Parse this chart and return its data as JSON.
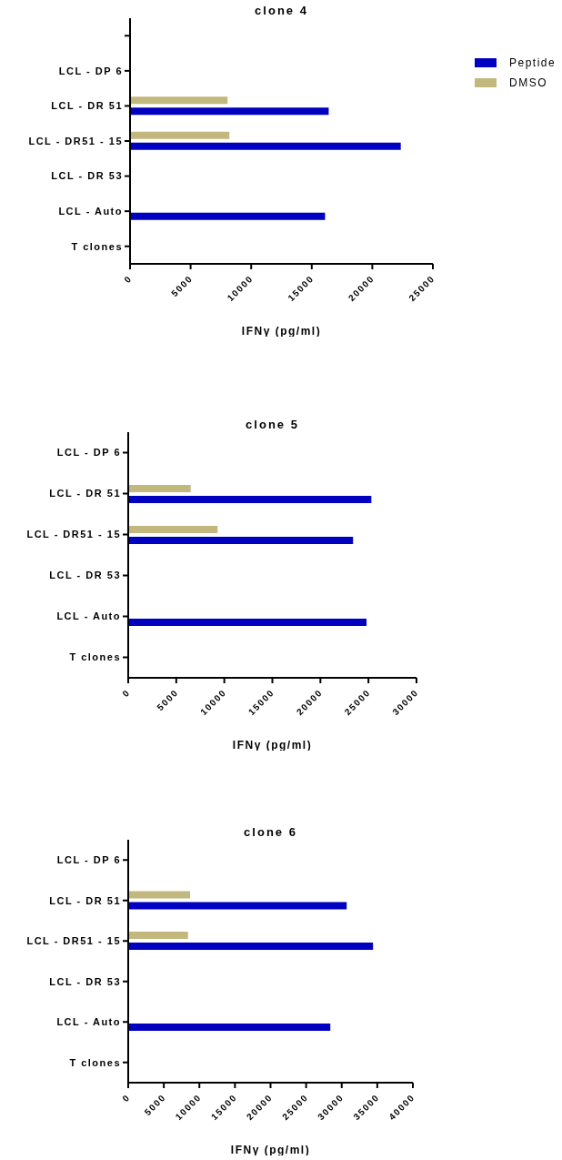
{
  "chart_data": [
    {
      "type": "bar",
      "orientation": "horizontal",
      "title": "clone 4",
      "xlabel": "IFNγ (pg/ml)",
      "categories": [
        null,
        "LCL - DP 6",
        "LCL - DR 51",
        "LCL - DR51 - 15",
        "LCL - DR 53",
        "LCL - Auto",
        "T clones"
      ],
      "series": [
        {
          "name": "Peptide",
          "color": "#0000c0",
          "values": [
            null,
            null,
            16400,
            22350,
            null,
            16100,
            null
          ]
        },
        {
          "name": "DMSO",
          "color": "#c2b77d",
          "values": [
            null,
            null,
            8050,
            8200,
            null,
            null,
            null
          ]
        }
      ],
      "xlim": [
        0,
        25000
      ],
      "xticks": [
        0,
        5000,
        10000,
        15000,
        20000,
        25000
      ],
      "legend": "top right",
      "grid": false
    },
    {
      "type": "bar",
      "orientation": "horizontal",
      "title": "clone 5",
      "xlabel": "IFNγ (pg/ml)",
      "categories": [
        "LCL - DP 6",
        "LCL - DR 51",
        "LCL - DR51 - 15",
        "LCL - DR 53",
        "LCL - Auto",
        "T clones"
      ],
      "series": [
        {
          "color": "#0000c0",
          "values": [
            null,
            25300,
            23400,
            null,
            24800,
            null
          ]
        },
        {
          "color": "#c2b77d",
          "values": [
            null,
            6500,
            9300,
            null,
            null,
            null
          ]
        }
      ],
      "xlim": [
        0,
        30000
      ],
      "xticks": [
        0,
        5000,
        10000,
        15000,
        20000,
        25000,
        30000
      ],
      "legend": false,
      "grid": false
    },
    {
      "type": "bar",
      "orientation": "horizontal",
      "title": "clone 6",
      "xlabel": "IFNγ (pg/ml)",
      "categories": [
        "LCL - DP 6",
        "LCL - DR 51",
        "LCL - DR51 - 15",
        "LCL - DR 53",
        "LCL - Auto",
        "T clones"
      ],
      "series": [
        {
          "color": "#0000c0",
          "values": [
            null,
            30700,
            34400,
            null,
            28400,
            null
          ]
        },
        {
          "color": "#c2b77d",
          "values": [
            null,
            8700,
            8400,
            null,
            null,
            null
          ]
        }
      ],
      "xlim": [
        0,
        40000
      ],
      "xticks": [
        0,
        5000,
        10000,
        15000,
        20000,
        25000,
        30000,
        35000,
        40000
      ],
      "legend": false,
      "grid": false
    }
  ]
}
